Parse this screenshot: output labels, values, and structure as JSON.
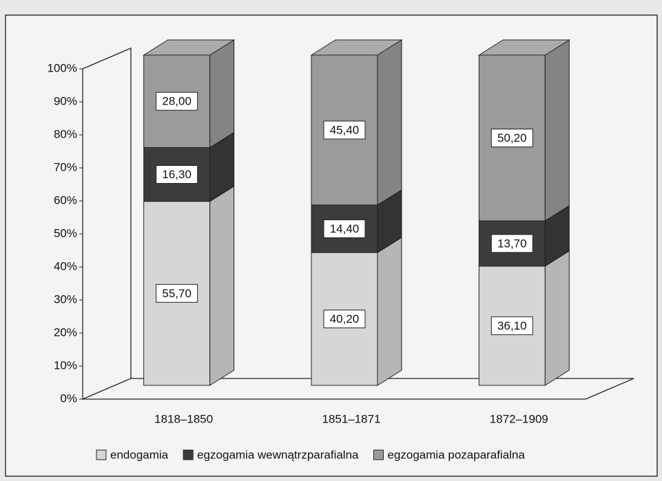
{
  "chart_data": {
    "type": "bar",
    "stacked": true,
    "categories": [
      "1818–1850",
      "1851–1871",
      "1872–1909"
    ],
    "series": [
      {
        "name": "endogamia",
        "color": "#d6d6d6",
        "values": [
          55.7,
          40.2,
          36.1
        ],
        "value_labels": [
          "55,70",
          "40,20",
          "36,10"
        ]
      },
      {
        "name": "egzogamia wewnątrzparafialna",
        "color": "#3c3c3c",
        "values": [
          16.3,
          14.4,
          13.7
        ],
        "value_labels": [
          "16,30",
          "14,40",
          "13,70"
        ]
      },
      {
        "name": "egzogamia pozaparafialna",
        "color": "#9b9b9b",
        "values": [
          28.0,
          45.4,
          50.2
        ],
        "value_labels": [
          "28,00",
          "45,40",
          "50,20"
        ]
      }
    ],
    "ylim": [
      0,
      100
    ],
    "yticks": [
      {
        "value": 0,
        "label": "0%"
      },
      {
        "value": 10,
        "label": "10%"
      },
      {
        "value": 20,
        "label": "20%"
      },
      {
        "value": 30,
        "label": "30%"
      },
      {
        "value": 40,
        "label": "40%"
      },
      {
        "value": 50,
        "label": "50%"
      },
      {
        "value": 60,
        "label": "60%"
      },
      {
        "value": 70,
        "label": "70%"
      },
      {
        "value": 80,
        "label": "80%"
      },
      {
        "value": 90,
        "label": "90%"
      },
      {
        "value": 100,
        "label": "100%"
      }
    ],
    "legend": "bottom"
  }
}
